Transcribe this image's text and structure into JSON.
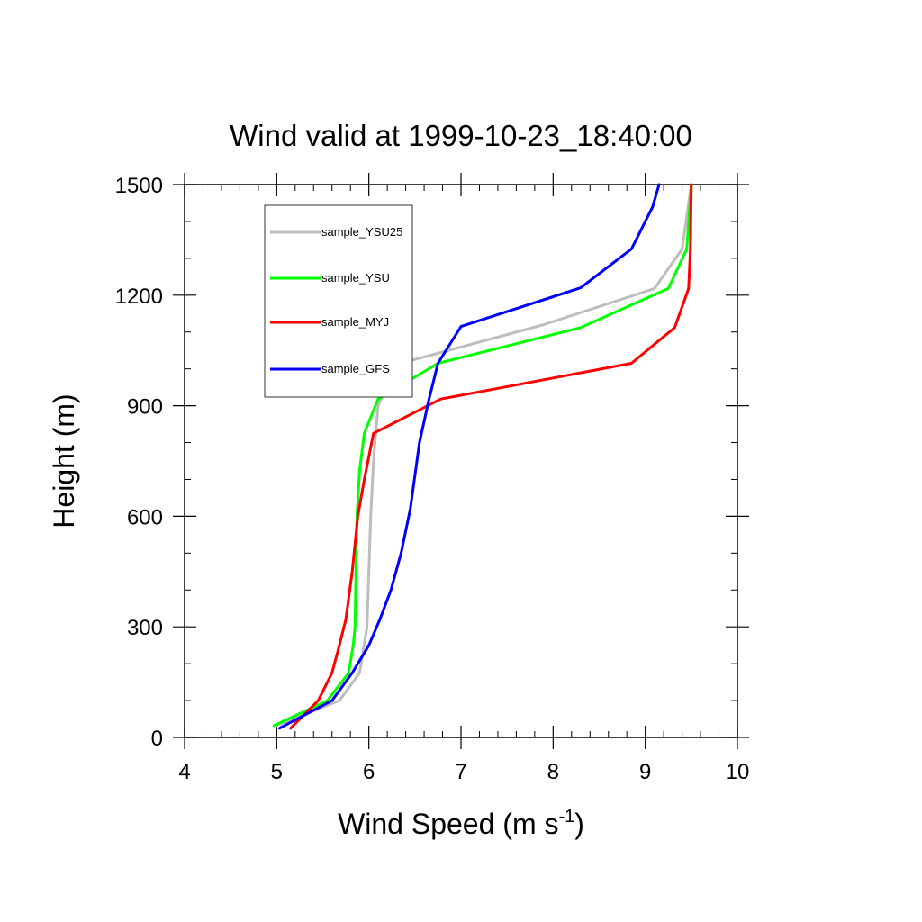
{
  "chart_data": {
    "type": "line",
    "title": "Wind valid at 1999-10-23_18:40:00",
    "xlabel": "Wind Speed (m s",
    "xlabel_superscript": "-1",
    "xlabel_suffix": ")",
    "ylabel": "Height (m)",
    "xlim": [
      4,
      10
    ],
    "ylim": [
      0,
      1500
    ],
    "xticks": [
      4,
      5,
      6,
      7,
      8,
      9,
      10
    ],
    "xtick_labels": [
      "4",
      "5",
      "6",
      "7",
      "8",
      "9",
      "10"
    ],
    "yticks": [
      0,
      300,
      600,
      900,
      1200,
      1500
    ],
    "ytick_labels": [
      "0",
      "300",
      "600",
      "900",
      "1200",
      "1500"
    ],
    "grid": false,
    "legend_position": "top-left",
    "series": [
      {
        "name": "sample_YSU25",
        "color": "#bdbdbd",
        "points": [
          [
            5.0,
            32
          ],
          [
            5.68,
            100
          ],
          [
            5.9,
            175
          ],
          [
            5.98,
            300
          ],
          [
            6.0,
            450
          ],
          [
            6.02,
            600
          ],
          [
            6.05,
            750
          ],
          [
            6.1,
            900
          ],
          [
            6.3,
            1012
          ],
          [
            7.9,
            1120
          ],
          [
            9.1,
            1218
          ],
          [
            9.4,
            1325
          ],
          [
            9.5,
            1500
          ]
        ]
      },
      {
        "name": "sample_YSU",
        "color": "#00ff00",
        "points": [
          [
            4.97,
            32
          ],
          [
            5.55,
            100
          ],
          [
            5.78,
            175
          ],
          [
            5.83,
            250
          ],
          [
            5.85,
            300
          ],
          [
            5.86,
            450
          ],
          [
            5.87,
            600
          ],
          [
            5.9,
            725
          ],
          [
            5.95,
            825
          ],
          [
            6.1,
            918
          ],
          [
            6.75,
            1015
          ],
          [
            8.3,
            1112
          ],
          [
            9.25,
            1218
          ],
          [
            9.45,
            1325
          ],
          [
            9.5,
            1500
          ]
        ]
      },
      {
        "name": "sample_MYJ",
        "color": "#ff0000",
        "points": [
          [
            5.15,
            25
          ],
          [
            5.45,
            100
          ],
          [
            5.6,
            175
          ],
          [
            5.68,
            250
          ],
          [
            5.75,
            320
          ],
          [
            5.82,
            450
          ],
          [
            5.88,
            600
          ],
          [
            5.95,
            700
          ],
          [
            6.05,
            825
          ],
          [
            6.78,
            918
          ],
          [
            8.85,
            1015
          ],
          [
            9.32,
            1112
          ],
          [
            9.47,
            1218
          ],
          [
            9.49,
            1325
          ],
          [
            9.5,
            1500
          ]
        ]
      },
      {
        "name": "sample_GFS",
        "color": "#0000ff",
        "points": [
          [
            5.03,
            25
          ],
          [
            5.6,
            100
          ],
          [
            5.82,
            175
          ],
          [
            6.0,
            250
          ],
          [
            6.12,
            320
          ],
          [
            6.24,
            400
          ],
          [
            6.35,
            500
          ],
          [
            6.45,
            620
          ],
          [
            6.55,
            800
          ],
          [
            6.65,
            915
          ],
          [
            6.75,
            1015
          ],
          [
            7.0,
            1115
          ],
          [
            8.3,
            1220
          ],
          [
            8.85,
            1325
          ],
          [
            9.08,
            1440
          ],
          [
            9.15,
            1500
          ]
        ]
      }
    ]
  }
}
